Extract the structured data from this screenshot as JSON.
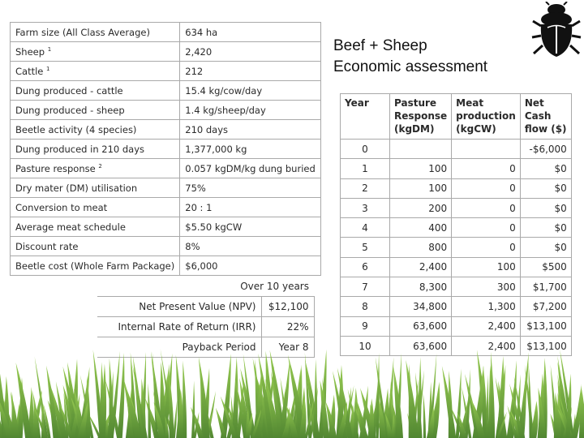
{
  "title_line1": "Beef + Sheep",
  "title_line2": "Economic assessment",
  "icons": {
    "logo": "beetle-icon"
  },
  "assumptions": [
    {
      "label": "Farm size (All Class Average)",
      "sup": "",
      "value": "634 ha"
    },
    {
      "label": "Sheep",
      "sup": "1",
      "value": "2,420"
    },
    {
      "label": "Cattle",
      "sup": "1",
      "value": "212"
    },
    {
      "label": "Dung produced - cattle",
      "sup": "",
      "value": "15.4 kg/cow/day"
    },
    {
      "label": "Dung produced - sheep",
      "sup": "",
      "value": "1.4 kg/sheep/day"
    },
    {
      "label": "Beetle activity (4 species)",
      "sup": "",
      "value": "210 days"
    },
    {
      "label": "Dung produced in 210 days",
      "sup": "",
      "value": "1,377,000 kg"
    },
    {
      "label": "Pasture response",
      "sup": "2",
      "value": "0.057 kgDM/kg dung buried"
    },
    {
      "label": "Dry mater (DM) utilisation",
      "sup": "",
      "value": "75%"
    },
    {
      "label": "Conversion to meat",
      "sup": "",
      "value": "20 : 1"
    },
    {
      "label": "Average meat schedule",
      "sup": "",
      "value": "$5.50 kgCW"
    },
    {
      "label": "Discount rate",
      "sup": "",
      "value": "8%"
    },
    {
      "label": "Beetle cost (Whole Farm Package)",
      "sup": "",
      "value": "$6,000"
    }
  ],
  "summary": {
    "caption": "Over 10 years",
    "rows": [
      {
        "label": "Net Present Value (NPV)",
        "value": "$12,100"
      },
      {
        "label": "Internal Rate of Return (IRR)",
        "value": "22%"
      },
      {
        "label": "Payback Period",
        "value": "Year 8"
      }
    ]
  },
  "cashflow": {
    "headers": [
      "Year",
      "Pasture Response (kgDM)",
      "Meat production (kgCW)",
      "Net Cash flow ($)"
    ],
    "rows": [
      [
        "0",
        "",
        "",
        "-$6,000"
      ],
      [
        "1",
        "100",
        "0",
        "$0"
      ],
      [
        "2",
        "100",
        "0",
        "$0"
      ],
      [
        "3",
        "200",
        "0",
        "$0"
      ],
      [
        "4",
        "400",
        "0",
        "$0"
      ],
      [
        "5",
        "800",
        "0",
        "$0"
      ],
      [
        "6",
        "2,400",
        "100",
        "$500"
      ],
      [
        "7",
        "8,300",
        "300",
        "$1,700"
      ],
      [
        "8",
        "34,800",
        "1,300",
        "$7,200"
      ],
      [
        "9",
        "63,600",
        "2,400",
        "$13,100"
      ],
      [
        "10",
        "63,600",
        "2,400",
        "$13,100"
      ]
    ]
  },
  "colors": {
    "border": "#a9a9a9",
    "text": "#2a2a2a",
    "grass": "#5f9e2e"
  }
}
